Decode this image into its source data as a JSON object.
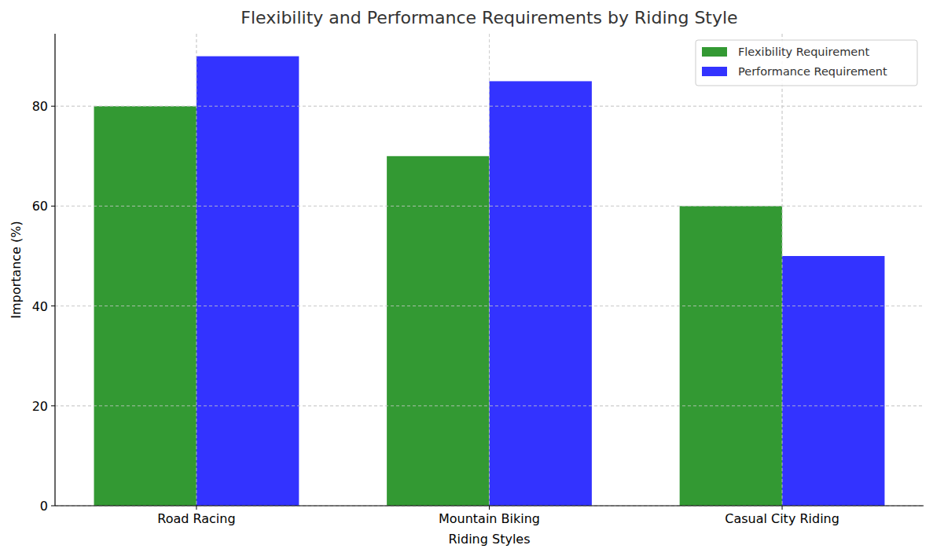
{
  "chart_data": {
    "type": "bar",
    "title": "Flexibility and Performance Requirements by Riding Style",
    "x_label": "Riding Styles",
    "y_label": "Importance (%)",
    "categories": [
      "Road Racing",
      "Mountain Biking",
      "Casual City Riding"
    ],
    "series": [
      {
        "name": "Flexibility Requirement",
        "color": "#339933",
        "values": [
          80,
          70,
          60
        ]
      },
      {
        "name": "Performance Requirement",
        "color": "#3333ff",
        "values": [
          90,
          85,
          50
        ]
      }
    ],
    "ylim": [
      0,
      94.5
    ],
    "yticks": [
      0,
      20,
      40,
      60,
      80
    ],
    "grid": true,
    "legend": "upper right"
  }
}
